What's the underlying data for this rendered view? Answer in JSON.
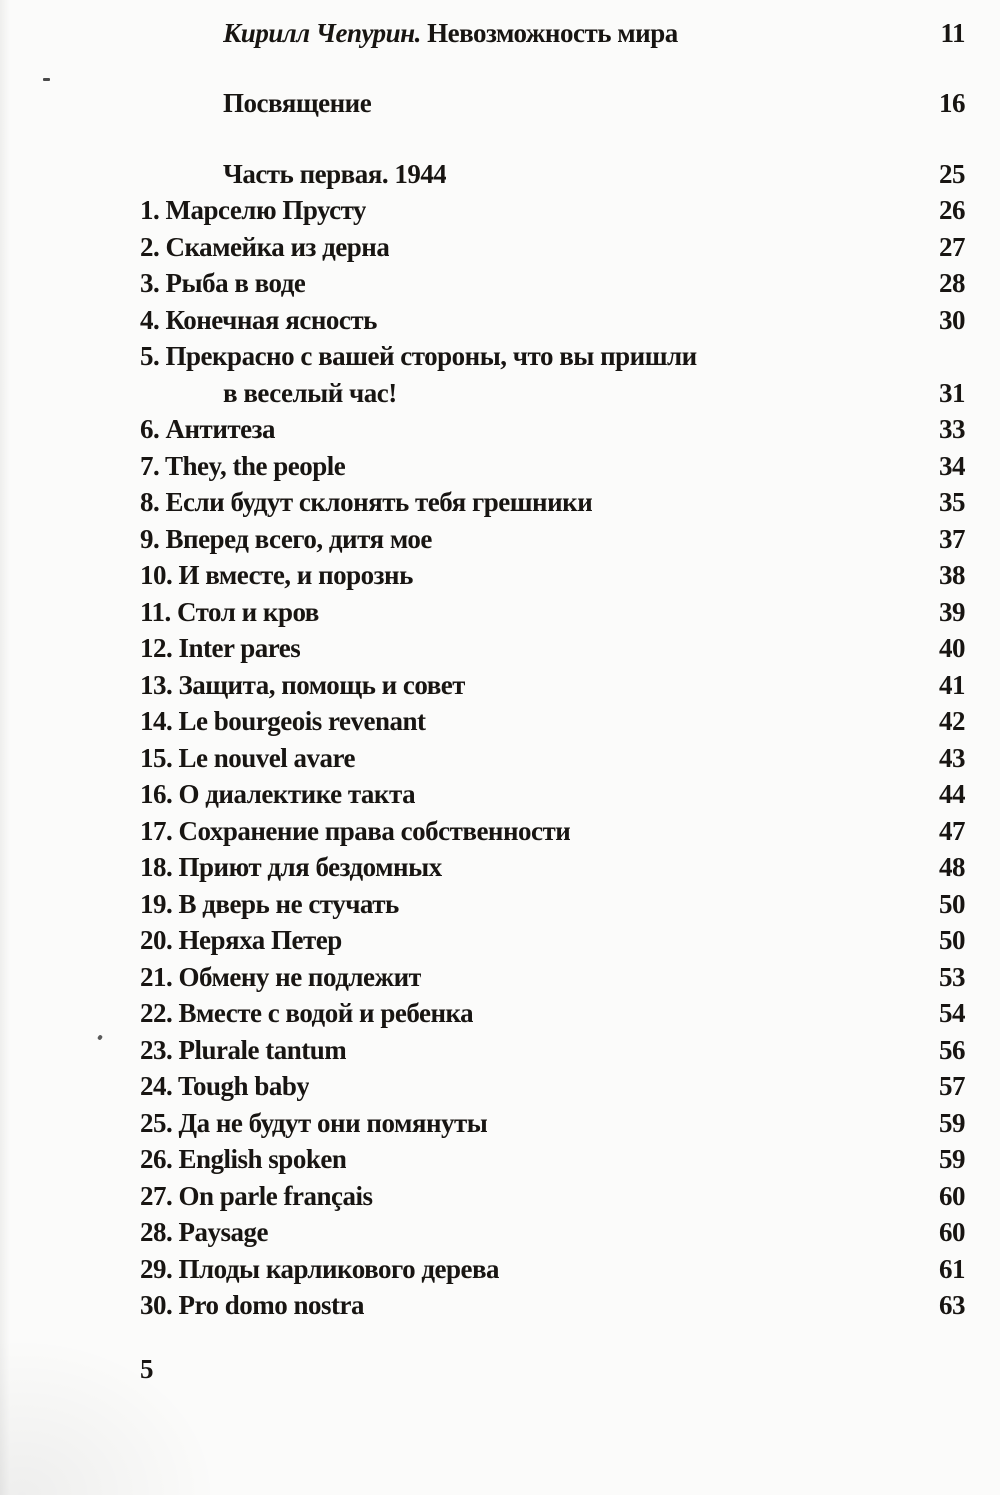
{
  "header": {
    "author": "Кирилл Чепурин.",
    "title": " Невозможность мира",
    "page": "11"
  },
  "toc_rows": [
    {
      "label": "Посвящение",
      "page": "16",
      "indent": true,
      "gap": true
    },
    {
      "label": "Часть первая. 1944",
      "page": "25",
      "indent": true,
      "gap": true
    },
    {
      "label": "1. Марселю Прусту",
      "page": "26"
    },
    {
      "label": "2. Скамейка из дерна",
      "page": "27"
    },
    {
      "label": "3. Рыба в воде",
      "page": "28"
    },
    {
      "label": "4. Конечная ясность",
      "page": "30"
    },
    {
      "label": "5. Прекрасно с вашей стороны, что вы пришли",
      "page": ""
    },
    {
      "label": "в веселый час!",
      "page": "31",
      "indent": true
    },
    {
      "label": "6. Антитеза",
      "page": "33"
    },
    {
      "label": "7. They, the people",
      "page": "34"
    },
    {
      "label": "8. Если будут склонять тебя грешники",
      "page": "35"
    },
    {
      "label": "9. Вперед всего, дитя мое",
      "page": "37"
    },
    {
      "label": "10. И вместе, и порознь",
      "page": "38"
    },
    {
      "label": "11. Стол и кров",
      "page": "39"
    },
    {
      "label": "12. Inter pares",
      "page": "40"
    },
    {
      "label": "13. Защита, помощь и совет",
      "page": "41"
    },
    {
      "label": "14. Le bourgeois revenant",
      "page": "42"
    },
    {
      "label": "15. Le nouvel avare",
      "page": "43"
    },
    {
      "label": "16. О диалектике такта",
      "page": "44"
    },
    {
      "label": "17. Сохранение права собственности",
      "page": "47"
    },
    {
      "label": "18. Приют для бездомных",
      "page": "48"
    },
    {
      "label": "19. В дверь не стучать",
      "page": "50"
    },
    {
      "label": "20. Неряха Петер",
      "page": "50"
    },
    {
      "label": "21. Обмену не подлежит",
      "page": "53"
    },
    {
      "label": "22. Вместе с водой и ребенка",
      "page": "54"
    },
    {
      "label": "23. Plurale tantum",
      "page": "56"
    },
    {
      "label": "24. Tough baby",
      "page": "57"
    },
    {
      "label": "25. Да не будут они помянуты",
      "page": "59"
    },
    {
      "label": "26. English spoken",
      "page": "59"
    },
    {
      "label": "27. On parle français",
      "page": "60"
    },
    {
      "label": "28. Paysage",
      "page": "60"
    },
    {
      "label": "29. Плоды карликового дерева",
      "page": "61"
    },
    {
      "label": "30. Pro domo nostra",
      "page": "63"
    }
  ],
  "footer": {
    "page_number": "5"
  }
}
